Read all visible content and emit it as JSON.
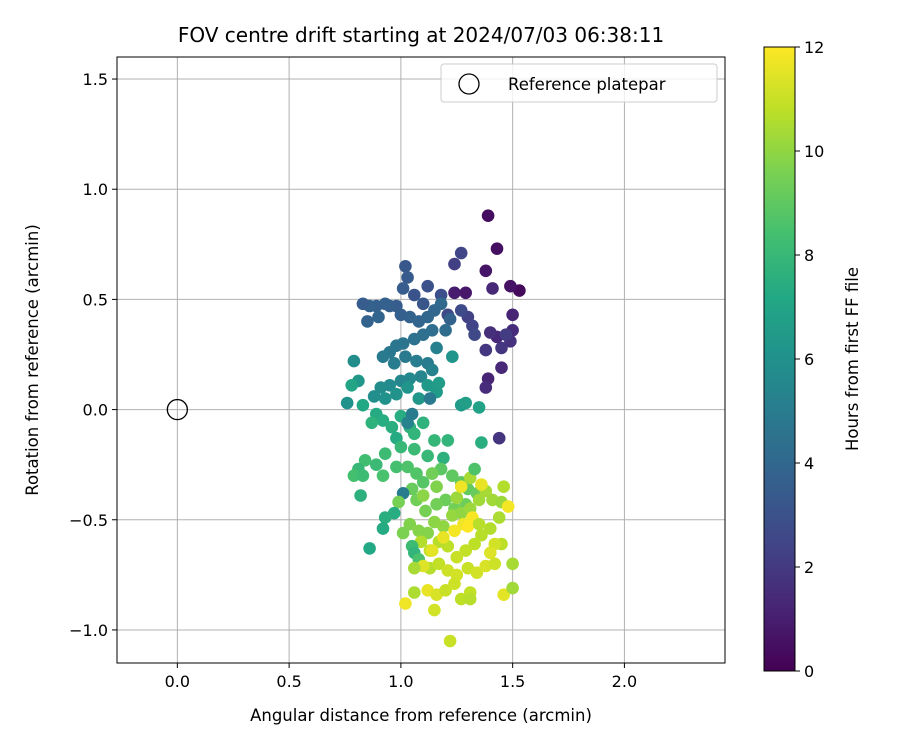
{
  "chart_data": {
    "type": "scatter",
    "title": "FOV centre drift starting at 2024/07/03 06:38:11",
    "xlabel": "Angular distance from reference (arcmin)",
    "ylabel": "Rotation from reference (arcmin)",
    "xlim": [
      -0.27,
      2.45
    ],
    "ylim": [
      -1.15,
      1.6
    ],
    "xticks": [
      0.0,
      0.5,
      1.0,
      1.5,
      2.0
    ],
    "xtick_labels": [
      "0.0",
      "0.5",
      "1.0",
      "1.5",
      "2.0"
    ],
    "yticks": [
      -1.0,
      -0.5,
      0.0,
      0.5,
      1.0,
      1.5
    ],
    "ytick_labels": [
      "−1.0",
      "−0.5",
      "0.0",
      "0.5",
      "1.0",
      "1.5"
    ],
    "grid": true,
    "legend": {
      "placement": "top-right",
      "entries": [
        "Reference platepar"
      ]
    },
    "reference_point": {
      "x": 0.0,
      "y": 0.0,
      "label": "Reference platepar"
    },
    "colorbar": {
      "label": "Hours from first FF file",
      "colormap": "viridis",
      "range": [
        0,
        12
      ],
      "ticks": [
        0,
        2,
        4,
        6,
        8,
        10,
        12
      ],
      "tick_labels": [
        "0",
        "2",
        "4",
        "6",
        "8",
        "10",
        "12"
      ]
    },
    "points": [
      [
        1.39,
        0.88,
        0.4
      ],
      [
        1.43,
        0.73,
        0.5
      ],
      [
        1.38,
        0.63,
        0.7
      ],
      [
        1.53,
        0.54,
        0.3
      ],
      [
        1.49,
        0.56,
        0.6
      ],
      [
        1.24,
        0.53,
        0.9
      ],
      [
        1.29,
        0.53,
        0.8
      ],
      [
        1.41,
        0.55,
        1.4
      ],
      [
        1.5,
        0.43,
        1.2
      ],
      [
        1.5,
        0.36,
        1.5
      ],
      [
        1.49,
        0.31,
        1.7
      ],
      [
        1.45,
        0.28,
        1.9
      ],
      [
        1.43,
        0.33,
        1.3
      ],
      [
        1.4,
        0.35,
        1.6
      ],
      [
        1.38,
        0.27,
        1.9
      ],
      [
        1.39,
        0.14,
        1.2
      ],
      [
        1.38,
        0.1,
        1.5
      ],
      [
        1.45,
        0.19,
        1.4
      ],
      [
        1.44,
        -0.13,
        1.8
      ],
      [
        1.47,
        0.34,
        2.1
      ],
      [
        1.3,
        0.42,
        2.3
      ],
      [
        1.32,
        0.38,
        2.4
      ],
      [
        1.33,
        0.34,
        2.6
      ],
      [
        1.27,
        0.71,
        2.5
      ],
      [
        1.24,
        0.66,
        2.2
      ],
      [
        1.27,
        0.45,
        2.7
      ],
      [
        1.21,
        0.43,
        2.6
      ],
      [
        1.18,
        0.52,
        2.9
      ],
      [
        1.12,
        0.56,
        3.0
      ],
      [
        1.06,
        0.52,
        3.1
      ],
      [
        1.1,
        0.48,
        3.2
      ],
      [
        1.02,
        0.65,
        3.3
      ],
      [
        1.03,
        0.6,
        3.4
      ],
      [
        1.01,
        0.55,
        3.5
      ],
      [
        0.98,
        0.47,
        3.5
      ],
      [
        0.95,
        0.47,
        3.6
      ],
      [
        0.93,
        0.48,
        3.7
      ],
      [
        0.89,
        0.47,
        3.6
      ],
      [
        0.86,
        0.47,
        3.8
      ],
      [
        0.83,
        0.48,
        3.5
      ],
      [
        0.85,
        0.4,
        3.8
      ],
      [
        0.9,
        0.42,
        3.9
      ],
      [
        1.0,
        0.43,
        3.6
      ],
      [
        1.04,
        0.42,
        3.8
      ],
      [
        1.08,
        0.4,
        3.9
      ],
      [
        1.12,
        0.42,
        4.0
      ],
      [
        1.15,
        0.45,
        4.0
      ],
      [
        1.18,
        0.48,
        4.1
      ],
      [
        1.22,
        0.41,
        3.8
      ],
      [
        1.2,
        0.36,
        4.2
      ],
      [
        1.14,
        0.36,
        4.3
      ],
      [
        1.1,
        0.34,
        4.4
      ],
      [
        1.06,
        0.32,
        4.5
      ],
      [
        1.01,
        0.3,
        4.6
      ],
      [
        0.98,
        0.29,
        4.7
      ],
      [
        0.95,
        0.26,
        4.8
      ],
      [
        0.92,
        0.24,
        4.9
      ],
      [
        0.97,
        0.21,
        5.0
      ],
      [
        1.02,
        0.24,
        4.9
      ],
      [
        1.07,
        0.22,
        5.1
      ],
      [
        1.12,
        0.21,
        5.0
      ],
      [
        1.16,
        0.28,
        5.2
      ],
      [
        1.14,
        0.18,
        5.3
      ],
      [
        1.09,
        0.15,
        5.4
      ],
      [
        1.04,
        0.14,
        5.6
      ],
      [
        1.0,
        0.13,
        5.5
      ],
      [
        0.95,
        0.11,
        5.7
      ],
      [
        0.91,
        0.1,
        5.8
      ],
      [
        0.88,
        0.06,
        5.9
      ],
      [
        0.93,
        0.05,
        6.0
      ],
      [
        0.98,
        0.07,
        6.1
      ],
      [
        1.03,
        0.1,
        6.2
      ],
      [
        1.08,
        0.05,
        6.3
      ],
      [
        1.12,
        0.11,
        6.4
      ],
      [
        1.16,
        0.08,
        6.5
      ],
      [
        1.17,
        0.12,
        6.6
      ],
      [
        1.23,
        0.24,
        6.2
      ],
      [
        1.27,
        0.02,
        6.5
      ],
      [
        1.29,
        0.03,
        6.7
      ],
      [
        1.35,
        0.01,
        6.9
      ],
      [
        1.13,
        0.05,
        4.9
      ],
      [
        0.79,
        0.22,
        5.8
      ],
      [
        0.76,
        0.03,
        6.0
      ],
      [
        0.81,
        0.13,
        6.3
      ],
      [
        0.78,
        0.11,
        7.0
      ],
      [
        0.83,
        0.02,
        7.2
      ],
      [
        0.89,
        -0.02,
        7.3
      ],
      [
        0.92,
        -0.05,
        7.4
      ],
      [
        0.96,
        -0.08,
        7.5
      ],
      [
        1.0,
        -0.03,
        7.4
      ],
      [
        1.04,
        -0.08,
        7.6
      ],
      [
        0.98,
        -0.13,
        7.3
      ],
      [
        0.87,
        -0.06,
        7.7
      ],
      [
        1.06,
        -0.11,
        7.8
      ],
      [
        1.1,
        -0.06,
        7.7
      ],
      [
        1.15,
        -0.14,
        7.9
      ],
      [
        1.21,
        -0.14,
        7.8
      ],
      [
        1.19,
        -0.22,
        7.6
      ],
      [
        1.12,
        -0.21,
        8.0
      ],
      [
        1.06,
        -0.18,
        8.1
      ],
      [
        1.0,
        -0.17,
        8.0
      ],
      [
        0.93,
        -0.2,
        8.2
      ],
      [
        0.89,
        -0.25,
        8.1
      ],
      [
        0.84,
        -0.23,
        8.3
      ],
      [
        0.81,
        -0.27,
        8.0
      ],
      [
        0.79,
        -0.3,
        8.4
      ],
      [
        0.83,
        -0.3,
        8.2
      ],
      [
        0.92,
        -0.3,
        8.5
      ],
      [
        0.98,
        -0.26,
        8.4
      ],
      [
        1.03,
        -0.26,
        8.6
      ],
      [
        1.07,
        -0.29,
        8.7
      ],
      [
        1.1,
        -0.33,
        8.8
      ],
      [
        1.14,
        -0.29,
        8.6
      ],
      [
        1.18,
        -0.27,
        8.9
      ],
      [
        1.23,
        -0.3,
        9.0
      ],
      [
        1.27,
        -0.33,
        9.0
      ],
      [
        1.36,
        -0.15,
        7.5
      ],
      [
        1.3,
        -0.36,
        9.1
      ],
      [
        1.34,
        -0.38,
        9.2
      ],
      [
        1.29,
        -0.43,
        9.3
      ],
      [
        1.24,
        -0.45,
        9.4
      ],
      [
        1.2,
        -0.41,
        9.3
      ],
      [
        1.16,
        -0.43,
        9.4
      ],
      [
        1.11,
        -0.46,
        9.5
      ],
      [
        1.07,
        -0.41,
        9.4
      ],
      [
        1.05,
        -0.36,
        9.2
      ],
      [
        1.01,
        -0.38,
        5.0
      ],
      [
        0.99,
        -0.42,
        9.5
      ],
      [
        0.97,
        -0.47,
        7.4
      ],
      [
        0.93,
        -0.49,
        7.5
      ],
      [
        0.92,
        -0.54,
        7.3
      ],
      [
        0.82,
        -0.39,
        7.6
      ],
      [
        0.86,
        -0.63,
        7.2
      ],
      [
        1.01,
        -0.56,
        9.6
      ],
      [
        1.04,
        -0.52,
        9.7
      ],
      [
        1.08,
        -0.55,
        9.8
      ],
      [
        1.12,
        -0.56,
        9.8
      ],
      [
        1.15,
        -0.51,
        9.9
      ],
      [
        1.19,
        -0.53,
        10.0
      ],
      [
        1.23,
        -0.48,
        10.1
      ],
      [
        1.27,
        -0.47,
        10.0
      ],
      [
        1.31,
        -0.45,
        10.2
      ],
      [
        1.35,
        -0.41,
        10.3
      ],
      [
        1.38,
        -0.37,
        10.4
      ],
      [
        1.41,
        -0.41,
        10.3
      ],
      [
        1.45,
        -0.42,
        10.2
      ],
      [
        1.46,
        -0.35,
        10.6
      ],
      [
        1.44,
        -0.49,
        10.5
      ],
      [
        1.4,
        -0.54,
        10.6
      ],
      [
        1.36,
        -0.57,
        10.7
      ],
      [
        1.33,
        -0.61,
        10.8
      ],
      [
        1.29,
        -0.64,
        10.9
      ],
      [
        1.25,
        -0.67,
        11.0
      ],
      [
        1.21,
        -0.62,
        10.8
      ],
      [
        1.17,
        -0.6,
        10.7
      ],
      [
        1.13,
        -0.64,
        10.9
      ],
      [
        1.09,
        -0.6,
        10.6
      ],
      [
        1.05,
        -0.62,
        8.2
      ],
      [
        1.06,
        -0.65,
        7.8
      ],
      [
        1.08,
        -0.68,
        8.5
      ],
      [
        1.13,
        -0.72,
        10.7
      ],
      [
        1.17,
        -0.7,
        10.9
      ],
      [
        1.21,
        -0.73,
        11.1
      ],
      [
        1.25,
        -0.75,
        11.2
      ],
      [
        1.3,
        -0.72,
        11.0
      ],
      [
        1.34,
        -0.74,
        11.2
      ],
      [
        1.38,
        -0.71,
        11.3
      ],
      [
        1.42,
        -0.7,
        11.1
      ],
      [
        1.45,
        -0.61,
        10.8
      ],
      [
        1.42,
        -0.61,
        11.2
      ],
      [
        1.4,
        -0.65,
        11.4
      ],
      [
        1.46,
        -0.84,
        11.5
      ],
      [
        1.5,
        -0.81,
        10.3
      ],
      [
        1.5,
        -0.7,
        10.4
      ],
      [
        1.48,
        -0.44,
        11.8
      ],
      [
        1.36,
        -0.34,
        11.6
      ],
      [
        1.32,
        -0.49,
        11.9
      ],
      [
        1.28,
        -0.52,
        11.7
      ],
      [
        1.3,
        -0.53,
        12.0
      ],
      [
        1.24,
        -0.55,
        11.8
      ],
      [
        1.19,
        -0.58,
        11.6
      ],
      [
        1.14,
        -0.64,
        11.5
      ],
      [
        1.1,
        -0.71,
        11.4
      ],
      [
        1.06,
        -0.72,
        10.4
      ],
      [
        1.12,
        -0.82,
        11.6
      ],
      [
        1.16,
        -0.84,
        11.3
      ],
      [
        1.2,
        -0.82,
        11.0
      ],
      [
        1.24,
        -0.79,
        11.1
      ],
      [
        1.27,
        -0.86,
        10.8
      ],
      [
        1.31,
        -0.83,
        10.9
      ],
      [
        1.31,
        -0.86,
        10.7
      ],
      [
        1.15,
        -0.91,
        11.2
      ],
      [
        1.02,
        -0.88,
        11.7
      ],
      [
        1.22,
        -1.05,
        11.0
      ],
      [
        1.06,
        -0.83,
        10.5
      ],
      [
        1.16,
        -0.35,
        9.7
      ],
      [
        1.1,
        -0.39,
        9.9
      ],
      [
        1.25,
        -0.4,
        10.2
      ],
      [
        1.27,
        -0.35,
        11.7
      ],
      [
        1.31,
        -0.31,
        10.4
      ],
      [
        1.35,
        -0.52,
        10.7
      ],
      [
        1.03,
        -0.06,
        5.3
      ],
      [
        1.05,
        -0.02,
        5.0
      ],
      [
        1.14,
        -0.29,
        9.4
      ],
      [
        1.33,
        -0.27,
        8.6
      ]
    ]
  }
}
